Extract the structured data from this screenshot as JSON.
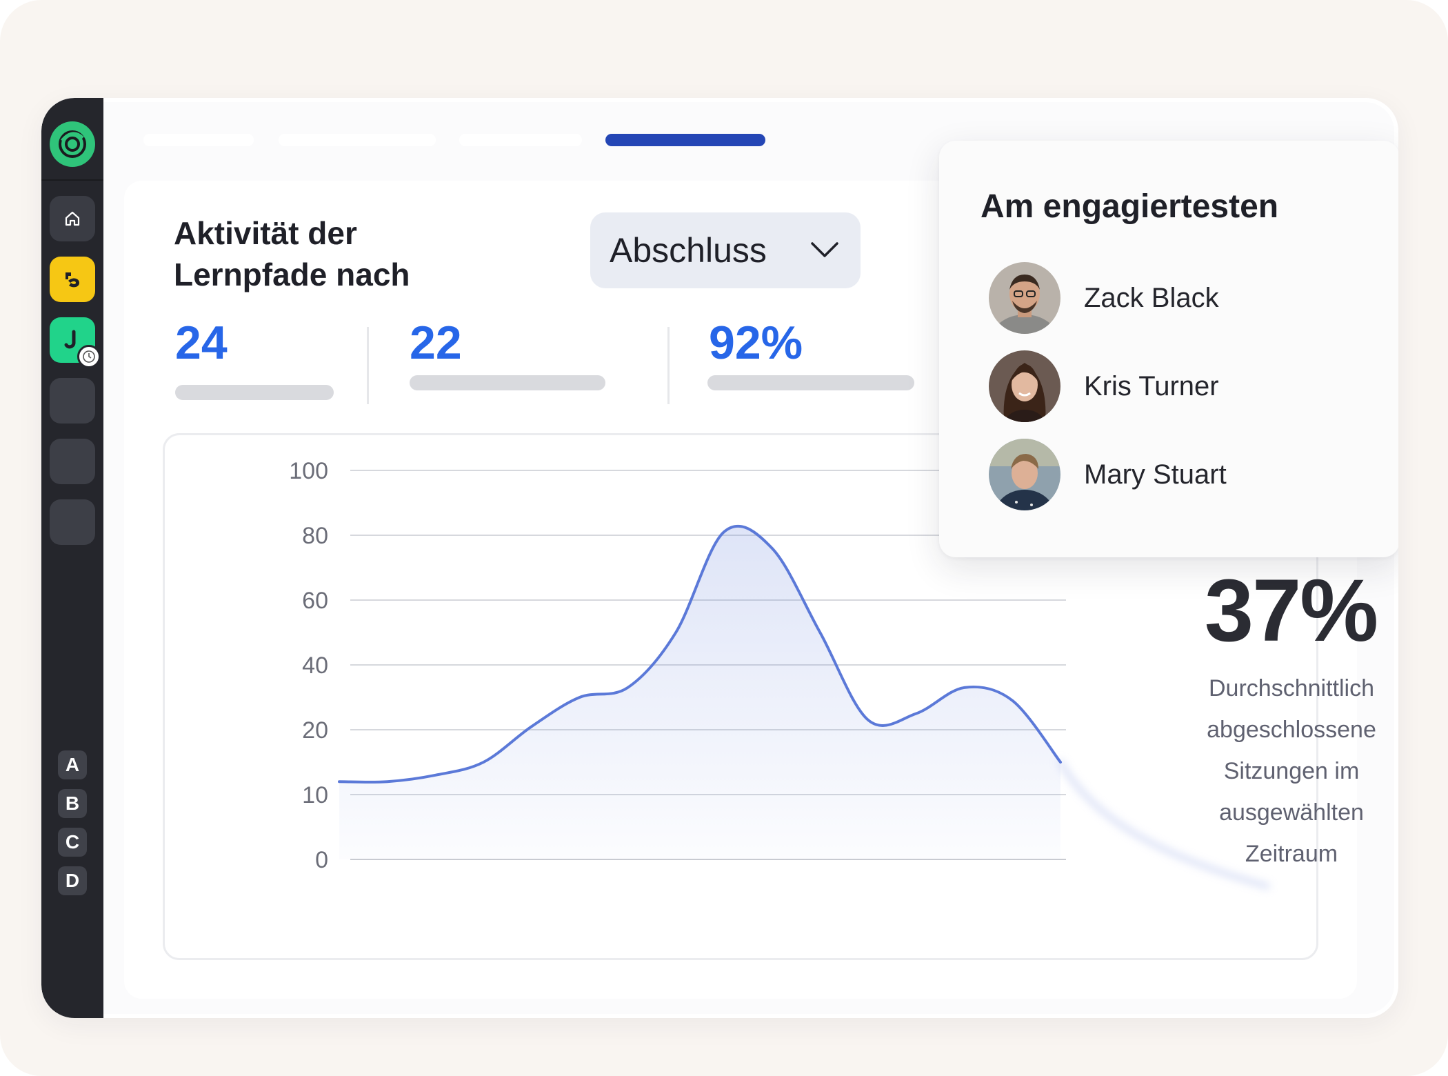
{
  "tabs": [
    "",
    "",
    "",
    ""
  ],
  "sidebar": {
    "letters": [
      "A",
      "B",
      "C",
      "D"
    ]
  },
  "card": {
    "title": "Aktivität der Lernpfade nach",
    "dropdown_value": "Abschluss"
  },
  "stats": [
    {
      "value": "24"
    },
    {
      "value": "22"
    },
    {
      "value": "92%"
    }
  ],
  "highlight": {
    "value": "37%",
    "description": "Durchschnittlich abgeschlossene Sitzungen im ausgewählten Zeitraum"
  },
  "popup": {
    "title": "Am engagiertesten",
    "people": [
      {
        "name": "Zack Black"
      },
      {
        "name": "Kris Turner"
      },
      {
        "name": "Mary Stuart"
      }
    ]
  },
  "colors": {
    "accent": "#2766e8",
    "active_tab": "#2446b5",
    "line": "#5b79d8",
    "sidebar": "#25262c"
  },
  "chart_data": {
    "type": "area",
    "yticks": [
      "100",
      "80",
      "60",
      "40",
      "20",
      "10",
      "0"
    ],
    "ylim": [
      0,
      100
    ],
    "grid": true,
    "series": [
      {
        "values": [
          12,
          12,
          13,
          15,
          21,
          30,
          33,
          50,
          81,
          76,
          50,
          23,
          25,
          33,
          29,
          15
        ]
      }
    ]
  }
}
